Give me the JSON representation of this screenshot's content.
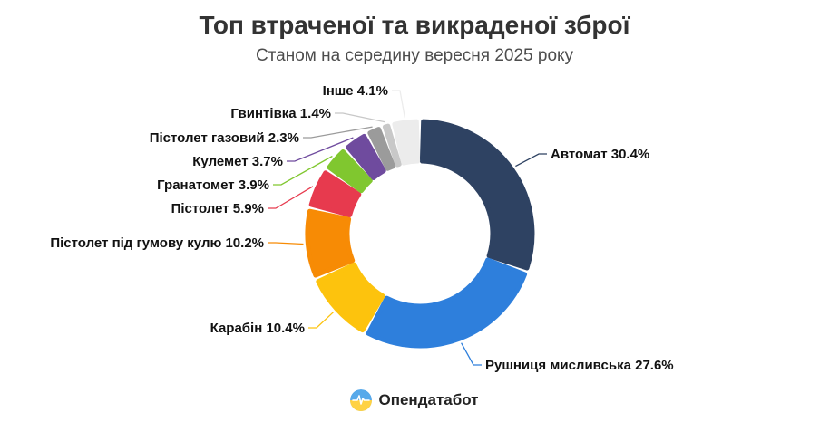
{
  "chart_data": {
    "type": "pie",
    "subtype": "donut",
    "title": "Топ втраченої та викраденої зброї",
    "subtitle": "Станом на середину вересня 2025 року",
    "unit": "%",
    "legend_position": "outside-labels-with-leader-lines",
    "segments": [
      {
        "label": "Автомат",
        "value": 30.4,
        "color": "#2e4262"
      },
      {
        "label": "Рушниця мисливська",
        "value": 27.6,
        "color": "#2e7fdc"
      },
      {
        "label": "Карабін",
        "value": 10.4,
        "color": "#fdc30d"
      },
      {
        "label": "Пістолет під гумову кулю",
        "value": 10.2,
        "color": "#f78b05"
      },
      {
        "label": "Пістолет",
        "value": 5.9,
        "color": "#e73a4e"
      },
      {
        "label": "Гранатомет",
        "value": 3.9,
        "color": "#80c72f"
      },
      {
        "label": "Кулемет",
        "value": 3.7,
        "color": "#6f4b9e"
      },
      {
        "label": "Пістолет газовий",
        "value": 2.3,
        "color": "#9b9b9b"
      },
      {
        "label": "Гвинтівка",
        "value": 1.4,
        "color": "#c8c8c8"
      },
      {
        "label": "Інше",
        "value": 4.1,
        "color": "#ececec"
      }
    ]
  },
  "footer": {
    "logo_text": "Опендатабот",
    "logo_colors": {
      "top": "#57a9ea",
      "bottom": "#ffd244",
      "pulse": "#ffffff"
    }
  }
}
